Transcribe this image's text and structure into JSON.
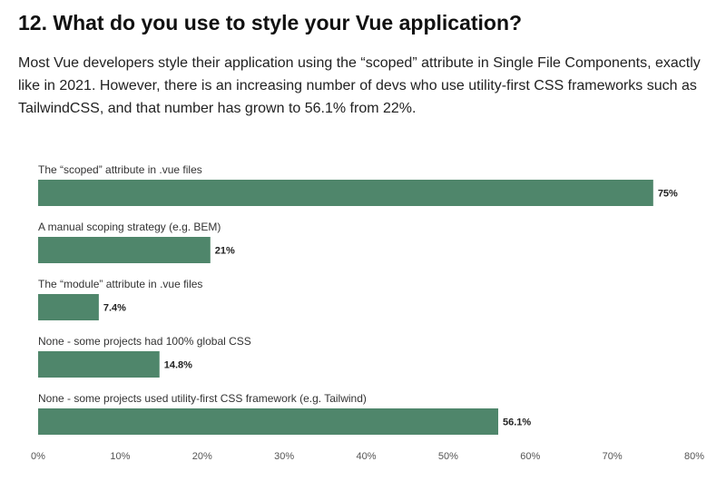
{
  "header": {
    "title": "12. What do you use to style your Vue application?",
    "intro": "Most Vue developers style their application using the “scoped” attribute in Single File Components, exactly like in 2021. However, there is an increasing number of devs who use utility-first CSS frameworks such as TailwindCSS, and that number has grown to 56.1% from 22%."
  },
  "colors": {
    "bar": "#4f866b",
    "axis": "#cccccc"
  },
  "chart_data": {
    "type": "bar",
    "orientation": "horizontal",
    "categories": [
      "The “scoped” attribute in .vue files",
      "A manual scoping strategy (e.g. BEM)",
      "The “module” attribute in .vue files",
      "None - some projects had 100% global CSS",
      "None - some projects used utility-first CSS framework (e.g. Tailwind)"
    ],
    "values": [
      75,
      21,
      7.4,
      14.8,
      56.1
    ],
    "value_labels": [
      "75%",
      "21%",
      "7.4%",
      "14.8%",
      "56.1%"
    ],
    "xlim": [
      0,
      80
    ],
    "xticks": [
      0,
      10,
      20,
      30,
      40,
      50,
      60,
      70,
      80
    ],
    "xtick_labels": [
      "0%",
      "10%",
      "20%",
      "30%",
      "40%",
      "50%",
      "60%",
      "70%",
      "80%"
    ],
    "grid": false,
    "legend": "none"
  }
}
